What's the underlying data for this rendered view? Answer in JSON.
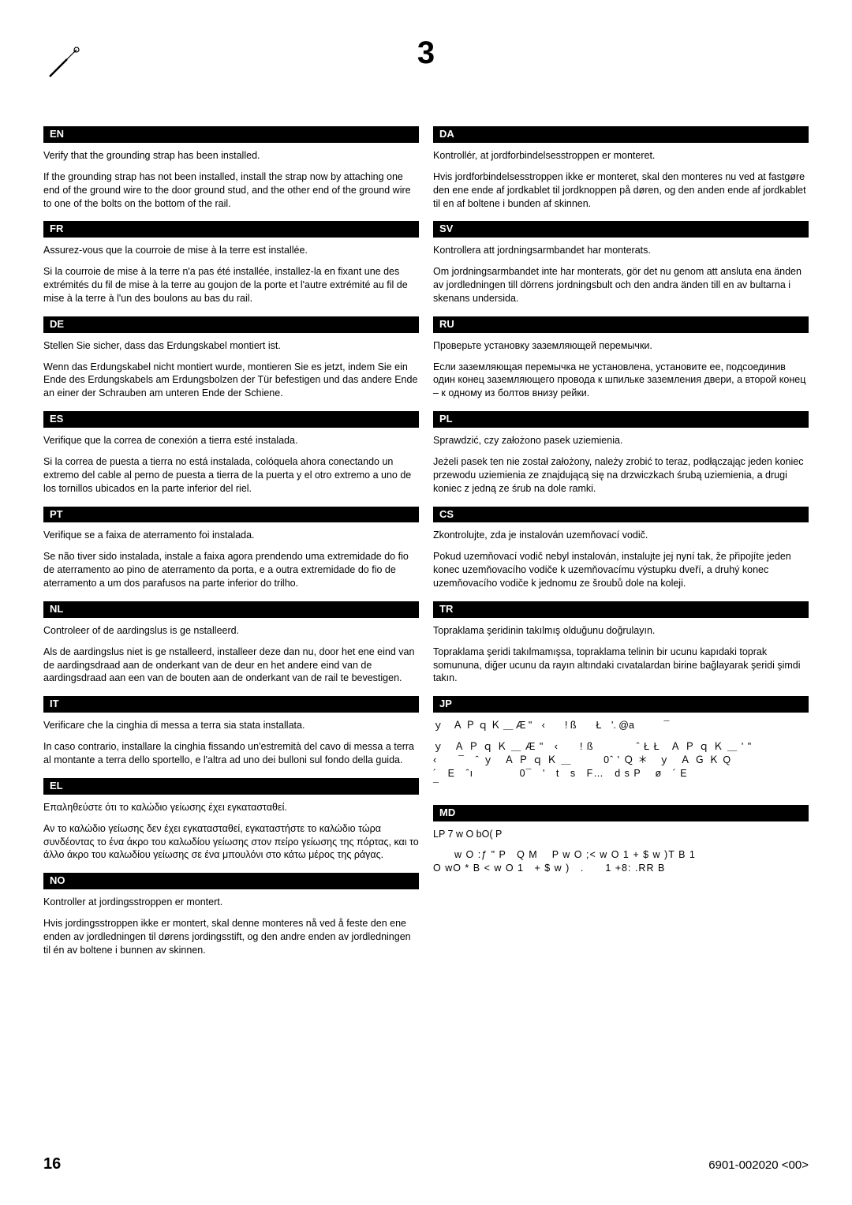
{
  "step_number": "3",
  "page_number": "16",
  "doc_id": "6901-002020 <00>",
  "left": [
    {
      "code": "EN",
      "p1": "Verify that the grounding strap has been installed.",
      "p2": "If the grounding strap has not been installed, install the strap now by attaching one end of the ground wire to the door ground stud, and the other end of the ground wire to one of the bolts on the bottom of the rail."
    },
    {
      "code": "FR",
      "p1": "Assurez-vous que la courroie de mise à la terre est installée.",
      "p2": "Si la courroie de mise à la terre n'a pas été installée, installez-la en fixant une des extrémités du fil de mise à la terre au goujon de la porte et l'autre extrémité au fil de mise à la terre à l'un des boulons au bas du rail."
    },
    {
      "code": "DE",
      "p1": "Stellen Sie sicher, dass das Erdungskabel montiert ist.",
      "p2": "Wenn das Erdungskabel nicht montiert wurde, montieren Sie es jetzt, indem Sie ein Ende des Erdungskabels am Erdungsbolzen der Tür befestigen und das andere Ende an einer der Schrauben am unteren Ende der Schiene."
    },
    {
      "code": "ES",
      "p1": "Verifique que la correa de conexión a tierra esté instalada.",
      "p2": "Si la correa de puesta a tierra no está instalada, colóquela ahora conectando un extremo del cable al perno de puesta a tierra de la puerta y el otro extremo a uno de los tornillos ubicados en la parte inferior del riel."
    },
    {
      "code": "PT",
      "p1": "Verifique se a faixa de aterramento foi instalada.",
      "p2": "Se não tiver sido instalada, instale a faixa agora prendendo uma extremidade do fio de aterramento ao pino de aterramento da porta, e a outra extremidade do fio de aterramento a um dos parafusos na parte inferior do trilho."
    },
    {
      "code": "NL",
      "p1": "Controleer of de aardingslus is ge nstalleerd.",
      "p2": "Als de aardingslus niet is ge nstalleerd, installeer deze dan nu, door het ene eind van de aardingsdraad aan de onderkant van de deur en het andere eind van de aardingsdraad aan een van de bouten aan de onderkant van de rail te bevestigen."
    },
    {
      "code": "IT",
      "p1": "Verificare che la cinghia di messa a terra sia stata installata.",
      "p2": "In caso contrario, installare la cinghia fissando un'estremità del cavo di messa a terra al montante a terra dello sportello, e l'altra ad uno dei bulloni sul fondo della guida."
    },
    {
      "code": "EL",
      "p1": "Επαληθεύστε ότι το καλώδιο γείωσης έχει εγκατασταθεί.",
      "p2": "Αν το καλώδιο γείωσης δεν έχει εγκατασταθεί, εγκαταστήστε το καλώδιο τώρα συνδέοντας το ένα άκρο του καλωδίου γείωσης στον πείρο γείωσης της πόρτας, και το άλλο άκρο του καλωδίου γείωσης σε ένα μπουλόνι στο κάτω μέρος της ράγας."
    },
    {
      "code": "NO",
      "p1": "Kontroller at jordingsstroppen er montert.",
      "p2": "Hvis jordingsstroppen ikke er montert, skal denne monteres nå ved å feste den ene enden av jordledningen til dørens jordingsstift, og den andre enden av jordledningen til én av boltene i bunnen av skinnen."
    }
  ],
  "right": [
    {
      "code": "DA",
      "p1": "Kontrollér, at jordforbindelsesstroppen er monteret.",
      "p2": "Hvis jordforbindelsesstroppen ikke er monteret, skal den monteres nu ved at fastgøre den ene ende af jordkablet til jordknoppen på døren, og den anden ende af jordkablet til en af boltene i bunden af skinnen."
    },
    {
      "code": "SV",
      "p1": "Kontrollera att jordningsarmbandet har monterats.",
      "p2": "Om jordningsarmbandet inte har monterats, gör det nu genom att ansluta ena änden av jordledningen till dörrens jordningsbult och den andra änden till en av bultarna i skenans undersida."
    },
    {
      "code": "RU",
      "p1": "Проверьте установку заземляющей перемычки.",
      "p2": "Если заземляющая перемычка не установлена, установите ее, подсоединив один конец заземляющего провода к шпильке заземления двери, а второй конец – к одному из болтов внизу рейки."
    },
    {
      "code": "PL",
      "p1": "Sprawdzić, czy założono pasek uziemienia.",
      "p2": "Jeżeli pasek ten nie został założony, należy zrobić to teraz, podłączając jeden koniec przewodu uziemienia ze znajdującą się na drzwiczkach śrubą uziemienia, a drugi koniec z jedną ze śrub na dole ramki."
    },
    {
      "code": "CS",
      "p1": "Zkontrolujte, zda je instalován uzemňovací vodič.",
      "p2": "Pokud uzemňovací vodič nebyl instalován, instalujte jej nyní tak, že připojíte jeden konec uzemňovacího vodiče k uzemňovacímu výstupku dveří, a druhý konec uzemňovacího vodiče k jednomu ze šroubů dole na koleji."
    },
    {
      "code": "TR",
      "p1": "Topraklama şeridinin takılmış olduğunu doğrulayın.",
      "p2": "Topraklama şeridi takılmamışsa, topraklama telinin bir ucunu kapıdaki toprak somununa, diğer ucunu da rayın altındaki cıvatalardan birine bağlayarak şeridi şimdi takın."
    },
    {
      "code": "JP",
      "p1": "ｙ　Ａ Ｐ ｑ Ｋ ＿ Æ \"　‹　　! ß　　Ł　'. @a　　　¯",
      "p2": "ｙ　Ａ Ｐ ｑ Ｋ ＿ Æ \"　‹　　! ß　　　　ˆ Ł Ł　Ａ Ｐ ｑ Ｋ ＿ ' \"\n‹　　¯　ˆ ｙ　Ａ Ｐ ｑ Ｋ ＿　　　0ˆ ' Ｑ ＊　ｙ　Ａ Ｇ Ｋ Q\n´　E　ˆı 　　　　0¯　'　t　s　F…　d s P 　ø　´ E\n¯"
    },
    {
      "code": "MD",
      "p1": "LP 7 w  O  bO(  P",
      "p2": "　　w  O :ƒ \"  P　Q M　  P w  O  ;< w  O  1 + $ w )T  B 1\nO  wO  * B  <  w  O  1　+ $ w )　.　　1 +8: .RR B"
    }
  ]
}
